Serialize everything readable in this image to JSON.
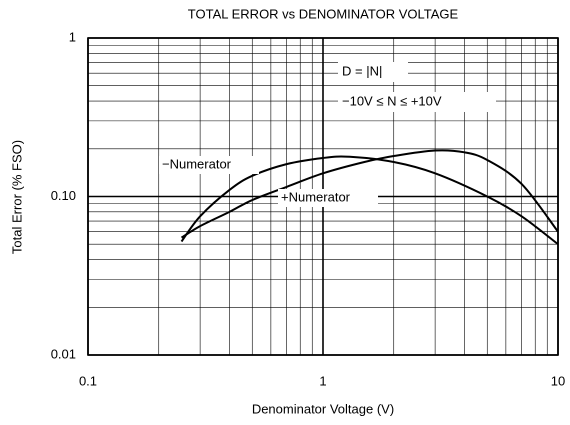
{
  "chart_data": {
    "type": "line",
    "title": "TOTAL ERROR vs DENOMINATOR VOLTAGE",
    "x_label": "Denominator Voltage (V)",
    "y_label": "Total Error (% FSO)",
    "annotations": [
      "D = |N|",
      "−10V ≤ N ≤ +10V"
    ],
    "log_x": true,
    "log_y": true,
    "grid": true,
    "xlim": [
      0.1,
      10
    ],
    "xticks": [
      0.1,
      1,
      10
    ],
    "ylim": [
      0.01,
      1
    ],
    "yticks": [
      0.01,
      {
        "value": 0.1,
        "label": "0.10"
      },
      1
    ],
    "series": [
      {
        "name": "−Numerator",
        "color": "#000000",
        "x": [
          0.25,
          0.3,
          0.4,
          0.5,
          0.7,
          1,
          1.3,
          2,
          3,
          5,
          7,
          10
        ],
        "values": [
          0.052,
          0.075,
          0.11,
          0.135,
          0.16,
          0.175,
          0.178,
          0.165,
          0.14,
          0.1,
          0.075,
          0.05
        ]
      },
      {
        "name": "+Numerator",
        "color": "#000000",
        "x": [
          0.25,
          0.3,
          0.4,
          0.5,
          0.7,
          1,
          1.5,
          2,
          3,
          4,
          5,
          7,
          10
        ],
        "values": [
          0.055,
          0.065,
          0.08,
          0.095,
          0.115,
          0.14,
          0.165,
          0.18,
          0.195,
          0.19,
          0.17,
          0.12,
          0.06
        ]
      }
    ]
  }
}
